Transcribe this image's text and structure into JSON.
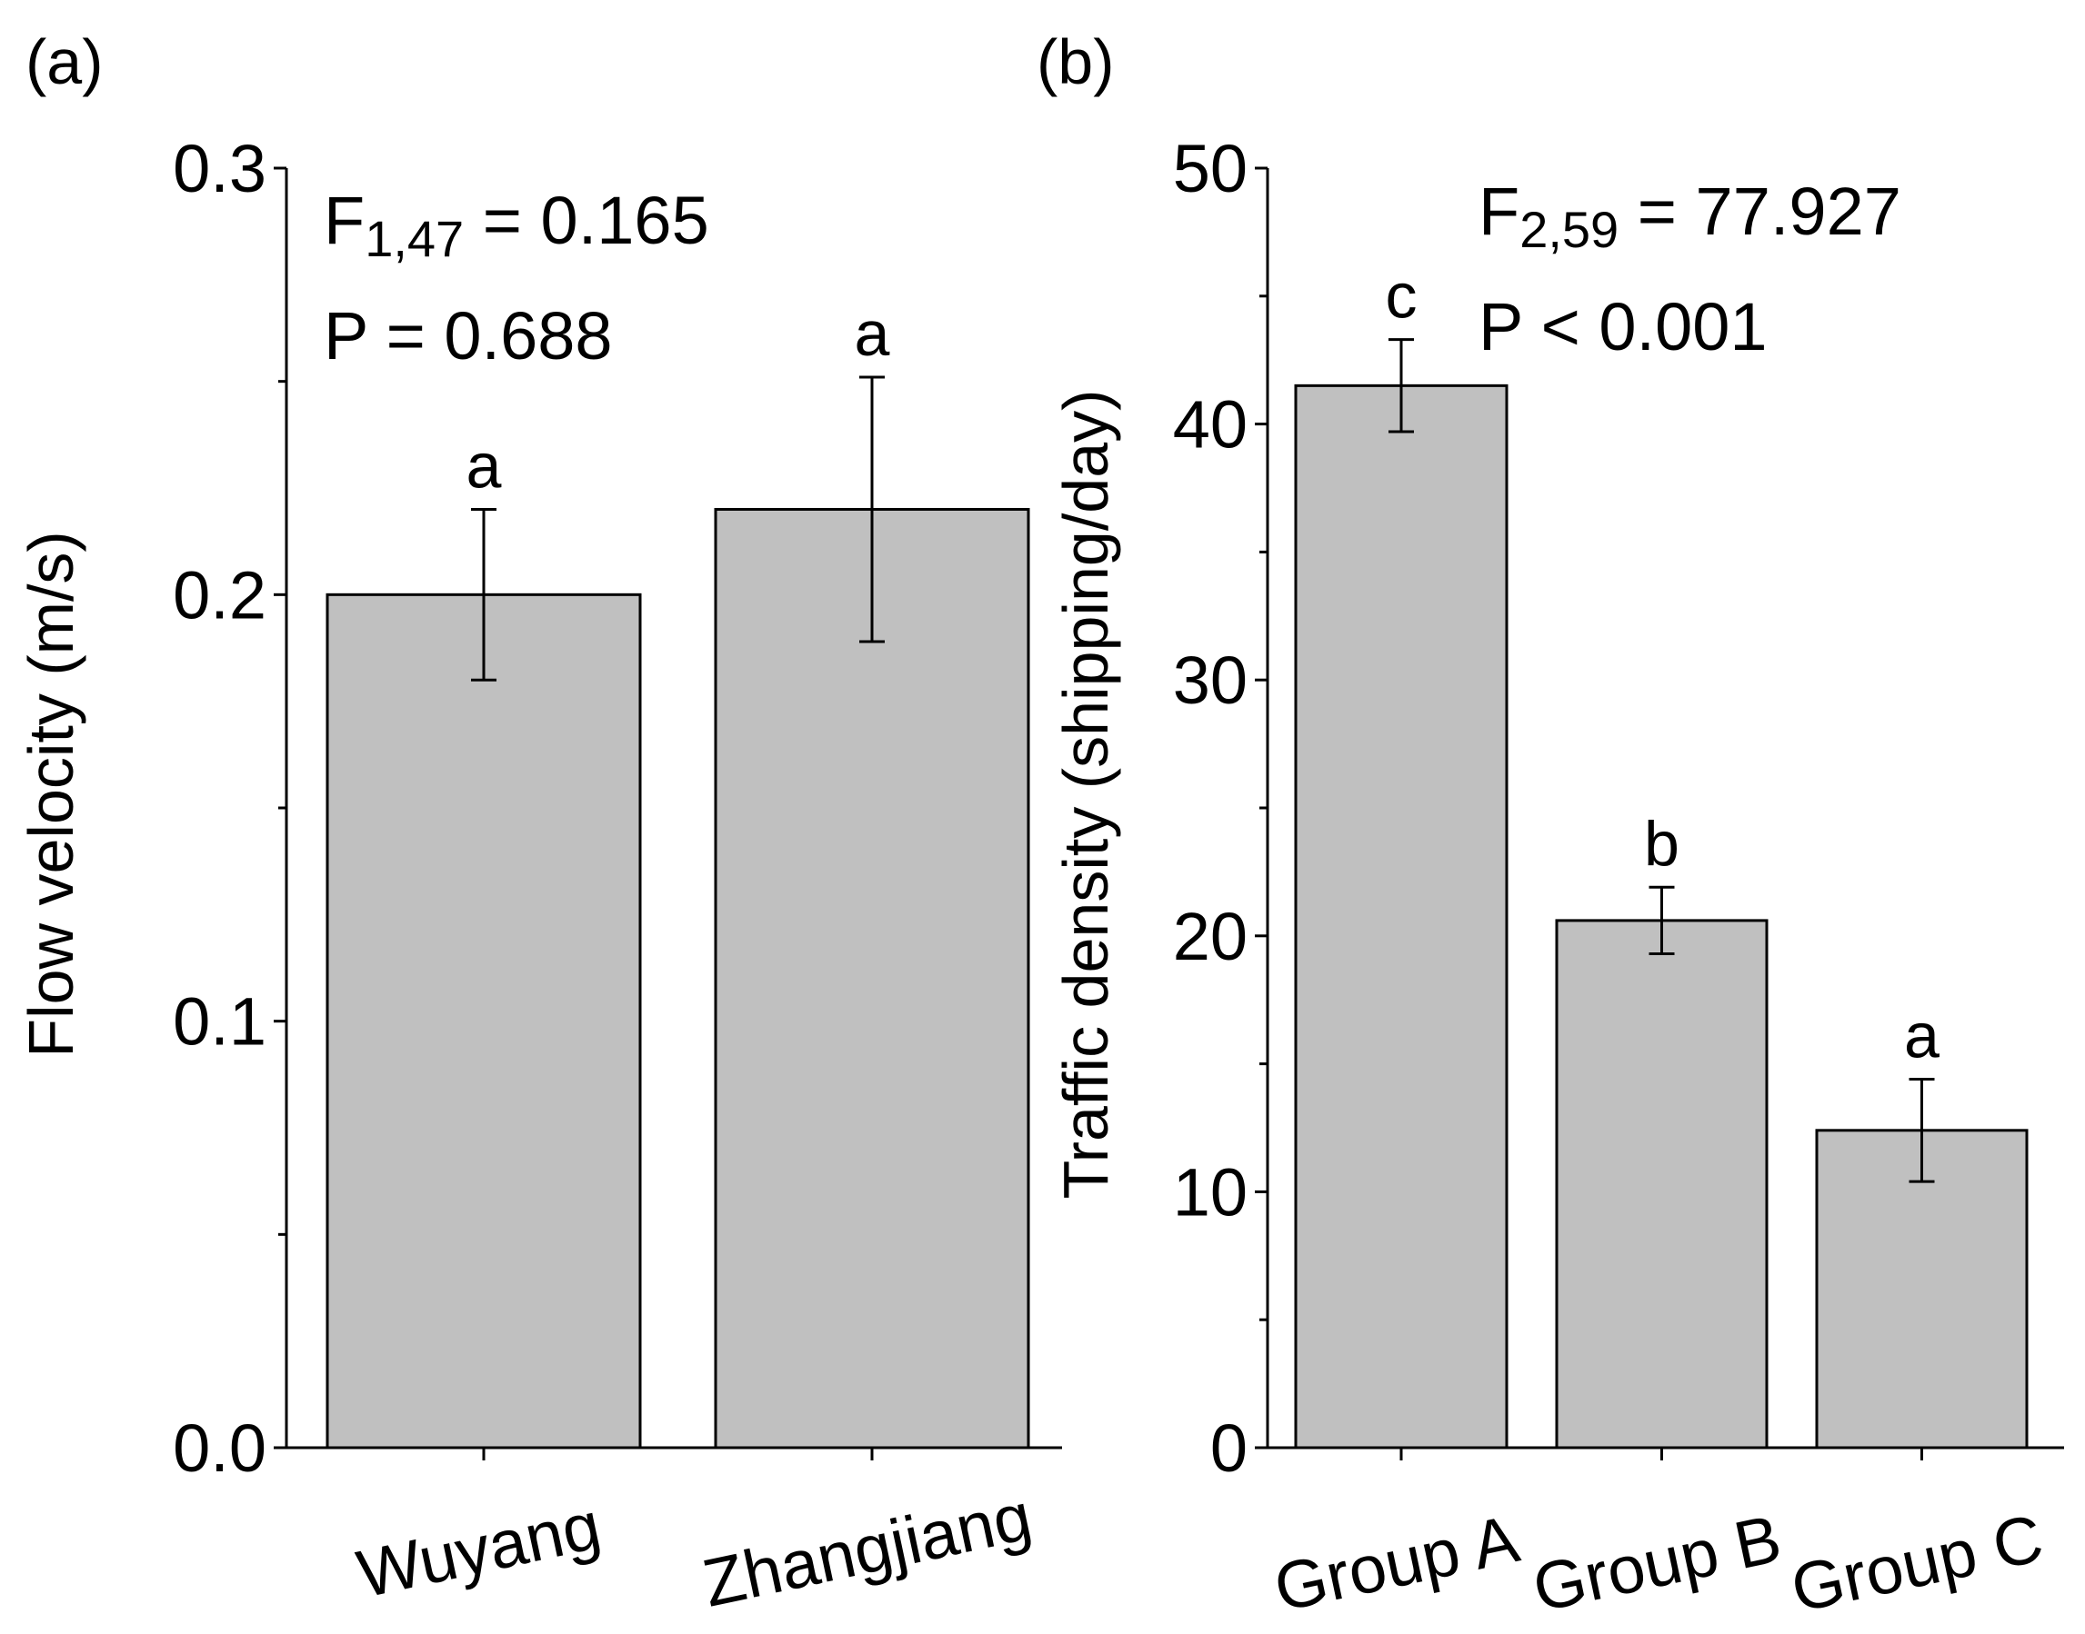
{
  "chart_data": [
    {
      "type": "bar",
      "panel_label": "(a)",
      "categories": [
        "Wuyang",
        "Zhangjiang"
      ],
      "values": [
        0.2,
        0.22
      ],
      "errors": [
        0.02,
        0.031
      ],
      "significance": [
        "a",
        "a"
      ],
      "ylabel": "Flow velocity (m/s)",
      "ylim": [
        0.0,
        0.3
      ],
      "yticks": [
        "0.0",
        "0.1",
        "0.2",
        "0.3"
      ],
      "ytick_values": [
        0.0,
        0.1,
        0.2,
        0.3
      ],
      "minor_tick_step": 0.05,
      "stats": {
        "f_label": "F",
        "f_sub": "1,47",
        "f_rest": " = 0.165",
        "p_text": "P = 0.688"
      },
      "bar_color": "#c0c0c0"
    },
    {
      "type": "bar",
      "panel_label": "(b)",
      "categories": [
        "Group A",
        "Group B",
        "Group C"
      ],
      "values": [
        41.5,
        20.6,
        12.4
      ],
      "errors": [
        1.8,
        1.3,
        2.0
      ],
      "significance": [
        "c",
        "b",
        "a"
      ],
      "ylabel": "Traffic density (shipping/day)",
      "ylim": [
        0,
        50
      ],
      "yticks": [
        "0",
        "10",
        "20",
        "30",
        "40",
        "50"
      ],
      "ytick_values": [
        0,
        10,
        20,
        30,
        40,
        50
      ],
      "minor_tick_step": 5,
      "stats": {
        "f_label": "F",
        "f_sub": "2,59",
        "f_rest": " = 77.927",
        "p_text": "P < 0.001"
      },
      "bar_color": "#c0c0c0"
    }
  ]
}
